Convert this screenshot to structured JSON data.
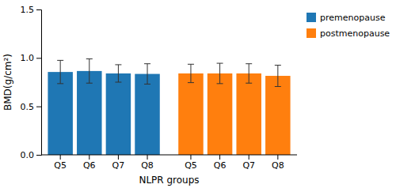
{
  "chart_data": {
    "type": "bar",
    "categories": [
      "Q5",
      "Q6",
      "Q7",
      "Q8"
    ],
    "series": [
      {
        "name": "premenopause",
        "values": [
          0.855,
          0.865,
          0.84,
          0.835
        ],
        "errors": [
          0.12,
          0.125,
          0.09,
          0.105
        ]
      },
      {
        "name": "postmenopause",
        "values": [
          0.84,
          0.84,
          0.84,
          0.815
        ],
        "errors": [
          0.095,
          0.105,
          0.1,
          0.11
        ]
      }
    ],
    "xlabel": "NLPR groups",
    "ylabel": "BMD(g/cm²)",
    "ylim": [
      0.0,
      1.5
    ],
    "yticks": [
      {
        "value": 0,
        "label": "0.0"
      },
      0.5,
      {
        "value": 1,
        "label": "1.0"
      },
      1.5
    ],
    "grid": false,
    "legend": "right"
  }
}
